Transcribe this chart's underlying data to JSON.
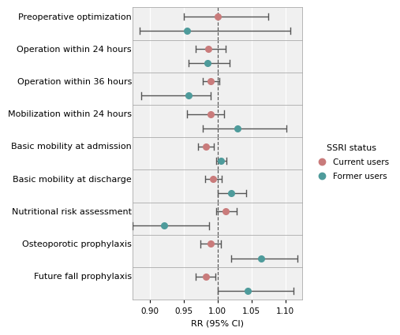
{
  "outcomes": [
    "Preoperative optimization",
    "Operation within 24 hours",
    "Operation within 36 hours",
    "Mobilization within 24 hours",
    "Basic mobility at admission",
    "Basic mobility at discharge",
    "Nutritional risk assessment",
    "Osteoporotic prophylaxis",
    "Future fall prophylaxis"
  ],
  "current_rr": [
    1.0,
    0.987,
    0.99,
    0.99,
    0.983,
    0.993,
    1.012,
    0.99,
    0.983
  ],
  "current_lo": [
    0.95,
    0.968,
    0.978,
    0.955,
    0.972,
    0.982,
    0.998,
    0.975,
    0.968
  ],
  "current_hi": [
    1.075,
    1.012,
    1.003,
    1.01,
    0.995,
    1.006,
    1.028,
    1.005,
    0.997
  ],
  "former_rr": [
    0.955,
    0.985,
    0.958,
    1.03,
    1.005,
    1.02,
    0.922,
    1.065,
    1.045
  ],
  "former_lo": [
    0.885,
    0.958,
    0.888,
    0.978,
    0.998,
    1.0,
    0.875,
    1.02,
    1.0
  ],
  "former_hi": [
    1.108,
    1.018,
    0.99,
    1.102,
    1.013,
    1.042,
    0.988,
    1.118,
    1.112
  ],
  "current_color": "#c97b7b",
  "former_color": "#4e9b9b",
  "ref_line": 1.0,
  "xlim": [
    0.875,
    1.125
  ],
  "xticks": [
    0.9,
    0.95,
    1.0,
    1.05,
    1.1
  ],
  "xtick_labels": [
    "0.90",
    "0.95",
    "1.00",
    "1.05",
    "1.10"
  ],
  "xlabel": "RR (95% CI)",
  "legend_title": "SSRI status",
  "legend_current": "Current users",
  "legend_former": "Former users",
  "panel_bg": "#f0f0f0",
  "grid_color": "#ffffff",
  "tick_fontsize": 7.5,
  "label_fontsize": 8.0,
  "legend_fontsize": 7.5
}
